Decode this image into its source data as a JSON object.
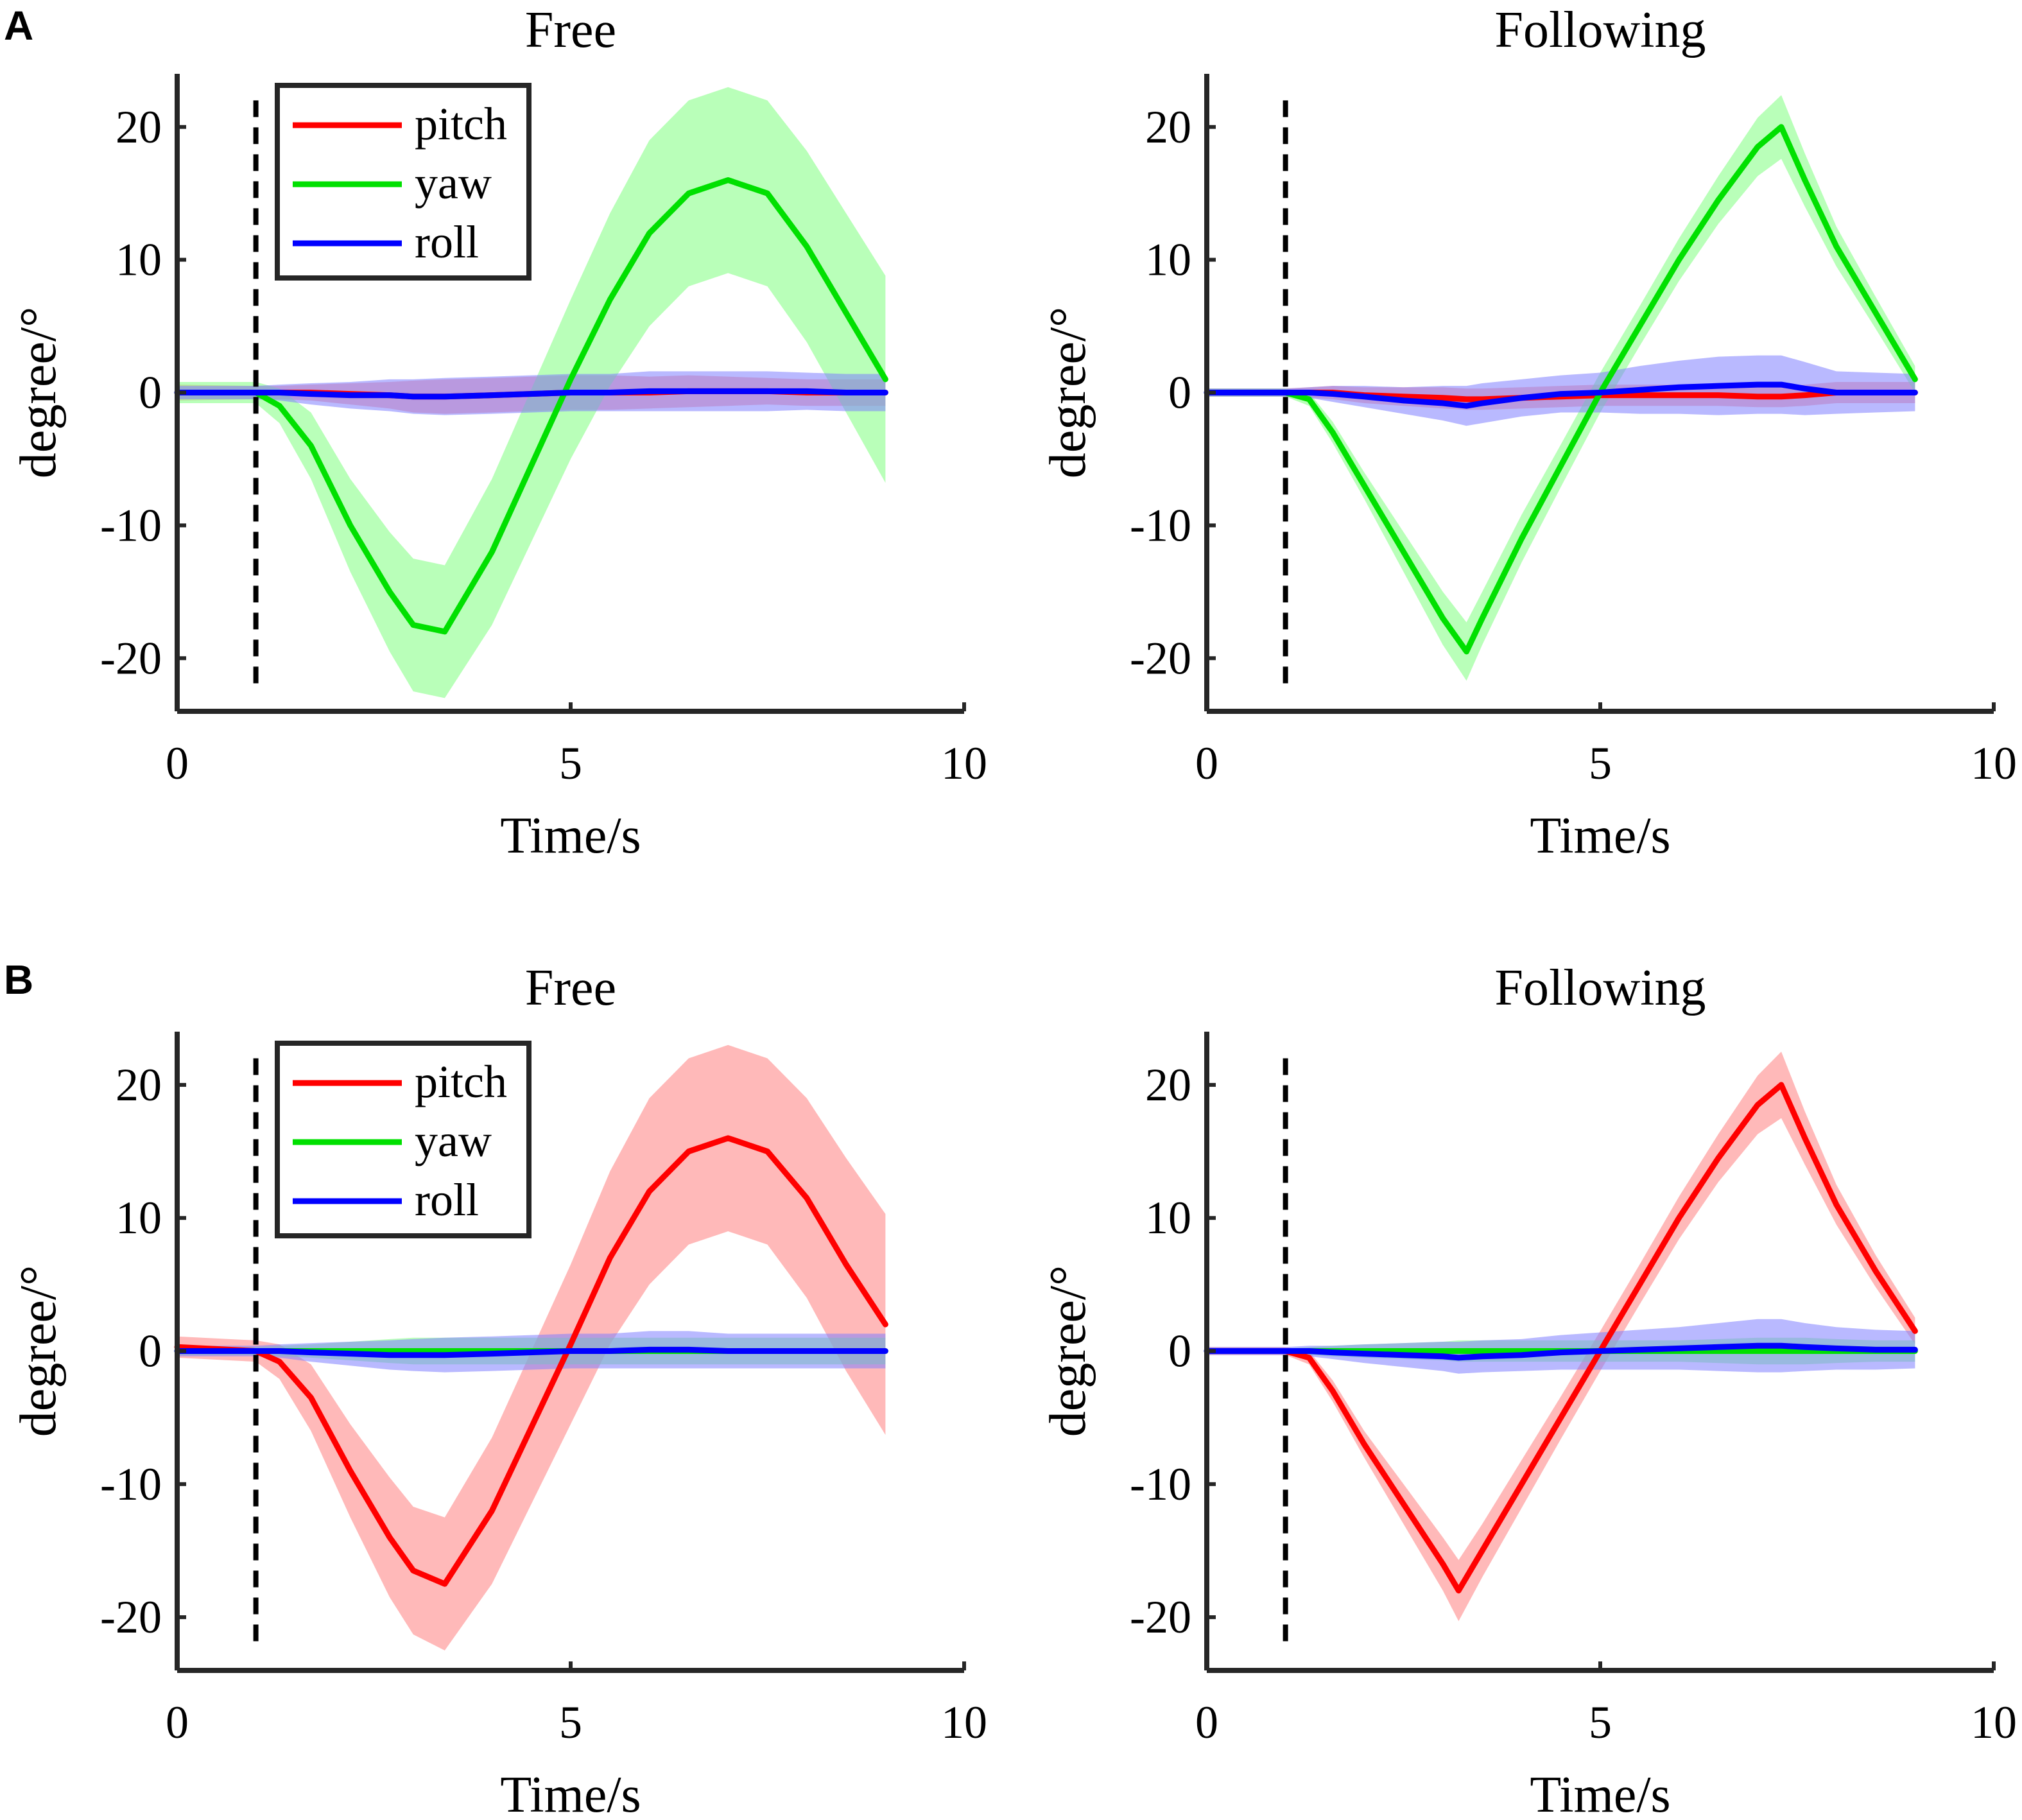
{
  "panel_letters": [
    "A",
    "B"
  ],
  "colors": {
    "pitch": "#ff0000",
    "yaw": "#00e000",
    "roll": "#0000ff",
    "pitch_band": "#ff8080",
    "yaw_band": "#80ff80",
    "roll_band": "#8080ff"
  },
  "chart_data": [
    {
      "type": "line",
      "panel": "A",
      "title": "Free",
      "xlabel": "Time/s",
      "ylabel": "degree/°",
      "xlim": [
        0,
        10
      ],
      "ylim": [
        -24,
        24
      ],
      "xticks": [
        0,
        5,
        10
      ],
      "yticks": [
        20,
        10,
        0,
        -10,
        -20
      ],
      "event_marker_x": 1,
      "legend": [
        "pitch",
        "yaw",
        "roll"
      ],
      "legend_position": "top-left",
      "x": [
        0,
        1,
        1.3,
        1.7,
        2.2,
        2.7,
        3.0,
        3.4,
        4.0,
        5.0,
        5.5,
        6.0,
        6.5,
        7.0,
        7.5,
        8.0,
        8.5,
        9.0
      ],
      "series": [
        {
          "name": "pitch",
          "values": [
            0,
            0,
            0,
            0,
            -0.1,
            -0.2,
            -0.3,
            -0.3,
            -0.2,
            0,
            0,
            0,
            0.1,
            0.1,
            0.1,
            0,
            0,
            0
          ],
          "band": [
            0.6,
            0.5,
            0.5,
            0.6,
            0.8,
            1.0,
            1.2,
            1.3,
            1.3,
            1.3,
            1.3,
            1.2,
            1.2,
            1.1,
            1.0,
            1.0,
            1.0,
            1.0
          ]
        },
        {
          "name": "yaw",
          "values": [
            0,
            0,
            -1,
            -4,
            -10,
            -15,
            -17.5,
            -18,
            -12,
            1,
            7,
            12,
            15,
            16,
            15,
            11,
            6,
            1
          ],
          "band": [
            0.8,
            0.8,
            1.3,
            2.5,
            3.5,
            4.5,
            5.0,
            5.0,
            5.5,
            6.0,
            6.5,
            7.0,
            7.0,
            7.0,
            7.0,
            7.2,
            7.5,
            7.8
          ]
        },
        {
          "name": "roll",
          "values": [
            0,
            0,
            0,
            -0.1,
            -0.2,
            -0.2,
            -0.3,
            -0.3,
            -0.2,
            0,
            0,
            0.1,
            0.1,
            0.1,
            0.1,
            0.1,
            0,
            0
          ],
          "band": [
            0.5,
            0.5,
            0.6,
            0.8,
            1.0,
            1.2,
            1.3,
            1.4,
            1.4,
            1.4,
            1.4,
            1.5,
            1.5,
            1.5,
            1.5,
            1.4,
            1.4,
            1.4
          ]
        }
      ]
    },
    {
      "type": "line",
      "panel": "A",
      "title": "Following",
      "xlabel": "Time/s",
      "ylabel": "degree/°",
      "xlim": [
        0,
        10
      ],
      "ylim": [
        -24,
        24
      ],
      "xticks": [
        0,
        5,
        10
      ],
      "yticks": [
        20,
        10,
        0,
        -10,
        -20
      ],
      "event_marker_x": 1,
      "x": [
        0,
        1,
        1.3,
        1.6,
        2.0,
        2.5,
        3.0,
        3.3,
        3.5,
        4.0,
        4.5,
        5.0,
        5.5,
        6.0,
        6.5,
        7.0,
        7.3,
        7.6,
        8.0,
        8.5,
        9.0
      ],
      "series": [
        {
          "name": "pitch",
          "values": [
            0,
            0,
            0,
            0,
            -0.2,
            -0.3,
            -0.4,
            -0.5,
            -0.5,
            -0.4,
            -0.3,
            -0.2,
            -0.2,
            -0.2,
            -0.2,
            -0.3,
            -0.3,
            -0.2,
            0,
            0,
            0
          ],
          "band": [
            0.3,
            0.3,
            0.4,
            0.5,
            0.6,
            0.7,
            0.8,
            0.8,
            0.8,
            0.8,
            0.8,
            0.8,
            0.8,
            0.8,
            0.8,
            0.8,
            0.8,
            0.8,
            0.8,
            0.8,
            0.8
          ]
        },
        {
          "name": "yaw",
          "values": [
            0,
            0,
            -0.5,
            -3,
            -7,
            -12,
            -17,
            -19.5,
            -17,
            -11,
            -5.5,
            0,
            5,
            10,
            14.5,
            18.5,
            20,
            16,
            11,
            6,
            1
          ],
          "band": [
            0.3,
            0.3,
            0.5,
            0.8,
            1.0,
            1.5,
            2.0,
            2.2,
            2.0,
            1.8,
            1.6,
            1.5,
            1.5,
            1.6,
            1.8,
            2.2,
            2.4,
            2.0,
            1.5,
            1.2,
            1.0
          ]
        },
        {
          "name": "roll",
          "values": [
            0,
            0,
            0,
            -0.1,
            -0.3,
            -0.6,
            -0.8,
            -1.0,
            -0.8,
            -0.4,
            -0.1,
            0,
            0.2,
            0.4,
            0.5,
            0.6,
            0.6,
            0.3,
            0,
            0,
            0
          ],
          "band": [
            0.3,
            0.3,
            0.4,
            0.6,
            0.8,
            1.0,
            1.3,
            1.5,
            1.5,
            1.4,
            1.4,
            1.5,
            1.8,
            2.0,
            2.2,
            2.2,
            2.2,
            2.0,
            1.6,
            1.5,
            1.4
          ]
        }
      ]
    },
    {
      "type": "line",
      "panel": "B",
      "title": "Free",
      "xlabel": "Time/s",
      "ylabel": "degree/°",
      "xlim": [
        0,
        10
      ],
      "ylim": [
        -24,
        24
      ],
      "xticks": [
        0,
        5,
        10
      ],
      "yticks": [
        20,
        10,
        0,
        -10,
        -20
      ],
      "event_marker_x": 1,
      "legend": [
        "pitch",
        "yaw",
        "roll"
      ],
      "legend_position": "top-left",
      "x": [
        0,
        1,
        1.3,
        1.7,
        2.2,
        2.7,
        3.0,
        3.4,
        4.0,
        5.0,
        5.5,
        6.0,
        6.5,
        7.0,
        7.5,
        8.0,
        8.5,
        9.0
      ],
      "series": [
        {
          "name": "pitch",
          "values": [
            0.3,
            0,
            -0.8,
            -3.5,
            -9,
            -14,
            -16.5,
            -17.5,
            -12,
            0.5,
            7,
            12,
            15,
            16,
            15,
            11.5,
            6.5,
            2
          ],
          "band": [
            0.8,
            0.8,
            1.3,
            2.5,
            3.5,
            4.5,
            4.8,
            5.0,
            5.5,
            6.0,
            6.5,
            7.0,
            7.0,
            7.0,
            7.0,
            7.5,
            8.0,
            8.3
          ]
        },
        {
          "name": "yaw",
          "values": [
            0,
            0,
            0,
            0,
            0,
            0,
            0,
            0,
            0,
            0,
            0,
            0,
            0,
            0,
            0,
            0,
            0,
            0
          ],
          "band": [
            0.3,
            0.3,
            0.4,
            0.5,
            0.7,
            0.9,
            1.0,
            1.0,
            1.0,
            1.0,
            1.0,
            1.0,
            1.0,
            1.0,
            1.0,
            1.0,
            1.0,
            1.0
          ]
        },
        {
          "name": "roll",
          "values": [
            0,
            0,
            0,
            -0.1,
            -0.2,
            -0.3,
            -0.3,
            -0.3,
            -0.2,
            0,
            0,
            0.1,
            0.1,
            0,
            0,
            0,
            0,
            0
          ],
          "band": [
            0.4,
            0.4,
            0.5,
            0.7,
            0.9,
            1.1,
            1.2,
            1.3,
            1.3,
            1.3,
            1.3,
            1.4,
            1.4,
            1.3,
            1.3,
            1.3,
            1.3,
            1.3
          ]
        }
      ]
    },
    {
      "type": "line",
      "panel": "B",
      "title": "Following",
      "xlabel": "Time/s",
      "ylabel": "degree/°",
      "xlim": [
        0,
        10
      ],
      "ylim": [
        -24,
        24
      ],
      "xticks": [
        0,
        5,
        10
      ],
      "yticks": [
        20,
        10,
        0,
        -10,
        -20
      ],
      "event_marker_x": 1,
      "x": [
        0,
        1,
        1.3,
        1.6,
        2.0,
        2.5,
        3.0,
        3.2,
        3.5,
        4.0,
        4.5,
        5.0,
        5.5,
        6.0,
        6.5,
        7.0,
        7.3,
        7.6,
        8.0,
        8.5,
        9.0
      ],
      "series": [
        {
          "name": "pitch",
          "values": [
            0,
            0,
            -0.5,
            -3,
            -7,
            -11.5,
            -16,
            -18,
            -15,
            -10,
            -5,
            0,
            5,
            10,
            14.5,
            18.5,
            20,
            16,
            11,
            6,
            1.5
          ],
          "band": [
            0.3,
            0.3,
            0.5,
            0.8,
            1.0,
            1.5,
            2.0,
            2.3,
            2.0,
            1.8,
            1.6,
            1.5,
            1.5,
            1.6,
            1.8,
            2.2,
            2.5,
            2.0,
            1.5,
            1.2,
            1.0
          ]
        },
        {
          "name": "yaw",
          "values": [
            0,
            0,
            0,
            0,
            0,
            0,
            0,
            0,
            0,
            0,
            0,
            0,
            0,
            0,
            0,
            0,
            0,
            0,
            0,
            0,
            0
          ],
          "band": [
            0.2,
            0.2,
            0.3,
            0.4,
            0.5,
            0.6,
            0.7,
            0.8,
            0.8,
            0.8,
            0.8,
            0.8,
            0.8,
            0.8,
            0.9,
            1.0,
            1.0,
            1.0,
            0.9,
            0.8,
            0.8
          ]
        },
        {
          "name": "roll",
          "values": [
            0,
            0,
            0,
            -0.1,
            -0.2,
            -0.3,
            -0.4,
            -0.5,
            -0.4,
            -0.3,
            -0.1,
            0,
            0.1,
            0.2,
            0.3,
            0.4,
            0.4,
            0.3,
            0.2,
            0.1,
            0.1
          ],
          "band": [
            0.3,
            0.3,
            0.4,
            0.5,
            0.7,
            0.9,
            1.1,
            1.2,
            1.2,
            1.2,
            1.3,
            1.4,
            1.5,
            1.6,
            1.8,
            2.0,
            2.0,
            1.8,
            1.6,
            1.5,
            1.4
          ]
        }
      ]
    }
  ]
}
